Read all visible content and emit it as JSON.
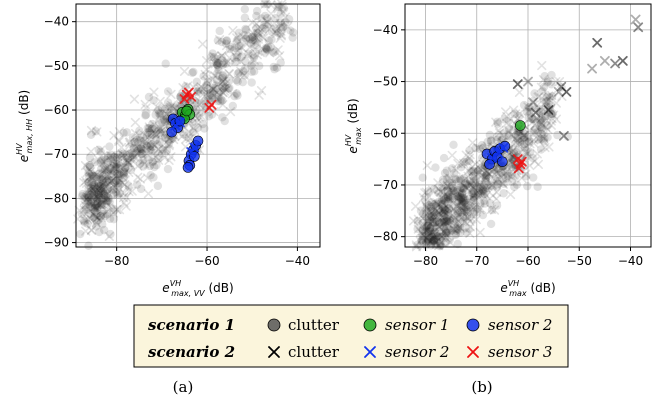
{
  "colors": {
    "clutter": "#1a1a1a",
    "sensor1": "#22aa22",
    "sensor2": "#1133ee",
    "sensor3": "#ee1111",
    "legend_bg": "#fbf5dc"
  },
  "legend": {
    "scenario1": "scenario 1",
    "scenario2": "scenario 2",
    "clutter": "clutter",
    "sensor1": "sensor 1",
    "sensor2": "sensor 2",
    "sensor3": "sensor 3"
  },
  "captions": {
    "a": "(a)",
    "b": "(b)"
  },
  "chart_data": [
    {
      "type": "scatter",
      "xlim": [
        -89,
        -35
      ],
      "ylim": [
        -91,
        -36
      ],
      "xticks": [
        -80,
        -60,
        -40
      ],
      "yticks": [
        -40,
        -50,
        -60,
        -70,
        -80,
        -90
      ],
      "xtick_labels": [
        "−80",
        "−60",
        "−40"
      ],
      "ytick_labels": [
        "−40",
        "−50",
        "−60",
        "−70",
        "−80",
        "−90"
      ],
      "xlabel": {
        "base": "e",
        "sup": "VH",
        "sub": "max, VV",
        "unit": "(dB)"
      },
      "ylabel": {
        "base": "e",
        "sup": "HV",
        "sub": "max, HH",
        "unit": "(dB)"
      },
      "grid": true,
      "clutter_cloud": {
        "x": [
          -86,
          -42
        ],
        "y": [
          -88,
          -39
        ],
        "slope": 0.95,
        "intercept": 1.5,
        "spread": 4.5
      },
      "series": [
        {
          "name": "sensor 1",
          "marker": "circle",
          "color": "sensor1",
          "x": [
            -65.5,
            -64.8,
            -64.2,
            -63.8,
            -65.0,
            -64.5
          ],
          "y": [
            -60.5,
            -61.2,
            -59.8,
            -61.0,
            -62.0,
            -60.2
          ]
        },
        {
          "name": "sensor 2",
          "marker": "circle",
          "color": "sensor2",
          "x": [
            -67.5,
            -67.0,
            -66.5,
            -66.0,
            -67.8,
            -63.5,
            -63.0,
            -62.5,
            -62.0,
            -64.0,
            -63.8,
            -62.8,
            -64.2
          ],
          "y": [
            -62.0,
            -63.0,
            -64.0,
            -62.5,
            -65.0,
            -70.0,
            -69.0,
            -68.0,
            -67.0,
            -71.5,
            -72.5,
            -70.5,
            -73.0
          ]
        },
        {
          "name": "sensor 2",
          "marker": "x",
          "color": "sensor2",
          "x": [
            -67.0,
            -66.0,
            -63.5,
            -62.8
          ],
          "y": [
            -63.5,
            -62.8,
            -69.5,
            -68.5
          ]
        },
        {
          "name": "sensor 3",
          "marker": "x",
          "color": "sensor3",
          "x": [
            -65.0,
            -64.5,
            -64.0,
            -63.5,
            -59.5,
            -59.0
          ],
          "y": [
            -57.5,
            -56.5,
            -56.0,
            -57.0,
            -59.5,
            -58.8
          ]
        }
      ]
    },
    {
      "type": "scatter",
      "xlim": [
        -84,
        -36
      ],
      "ylim": [
        -82,
        -35
      ],
      "xticks": [
        -80,
        -70,
        -60,
        -50,
        -40
      ],
      "yticks": [
        -40,
        -50,
        -60,
        -70,
        -80
      ],
      "xtick_labels": [
        "−80",
        "−70",
        "−60",
        "−50",
        "−40"
      ],
      "ytick_labels": [
        "−40",
        "−50",
        "−60",
        "−70",
        "−80"
      ],
      "xlabel": {
        "base": "e",
        "sup": "VH",
        "sub": "max",
        "unit": "(dB)"
      },
      "ylabel": {
        "base": "e",
        "sup": "HV",
        "sub": "max",
        "unit": "(dB)"
      },
      "grid": true,
      "clutter_cloud": {
        "x": [
          -80,
          -55
        ],
        "y": [
          -80,
          -55
        ],
        "slope": 1.0,
        "intercept": 0.0,
        "spread": 4.0
      },
      "sparse_x": [
        {
          "x": -39.0,
          "y": -38.0
        },
        {
          "x": -38.5,
          "y": -39.5
        },
        {
          "x": -46.5,
          "y": -42.5
        },
        {
          "x": -45.0,
          "y": -46.0
        },
        {
          "x": -43.0,
          "y": -46.5
        },
        {
          "x": -41.5,
          "y": -46.0
        },
        {
          "x": -47.5,
          "y": -47.5
        },
        {
          "x": -53.5,
          "y": -51.0
        },
        {
          "x": -52.5,
          "y": -52.0
        },
        {
          "x": -54.0,
          "y": -52.0
        },
        {
          "x": -53.0,
          "y": -60.5
        },
        {
          "x": -62.0,
          "y": -50.5
        },
        {
          "x": -59.0,
          "y": -54.0
        },
        {
          "x": -58.5,
          "y": -56.0
        },
        {
          "x": -56.0,
          "y": -55.5
        },
        {
          "x": -60.0,
          "y": -50.0
        }
      ],
      "series": [
        {
          "name": "sensor 1",
          "marker": "circle",
          "color": "sensor1",
          "x": [
            -61.5
          ],
          "y": [
            -58.5
          ]
        },
        {
          "name": "sensor 2",
          "marker": "circle",
          "color": "sensor2",
          "x": [
            -68.0,
            -67.0,
            -66.5,
            -66.0,
            -65.5,
            -65.0,
            -64.5,
            -67.5
          ],
          "y": [
            -64.0,
            -65.0,
            -63.5,
            -64.5,
            -63.0,
            -65.5,
            -62.5,
            -66.0
          ]
        },
        {
          "name": "sensor 2",
          "marker": "x",
          "color": "sensor2",
          "x": [
            -67.0,
            -65.8,
            -64.8
          ],
          "y": [
            -64.8,
            -63.8,
            -62.8
          ]
        },
        {
          "name": "sensor 3",
          "marker": "x",
          "color": "sensor3",
          "x": [
            -62.0,
            -61.5,
            -61.8,
            -61.2
          ],
          "y": [
            -65.0,
            -66.0,
            -66.8,
            -65.5
          ]
        }
      ]
    }
  ]
}
